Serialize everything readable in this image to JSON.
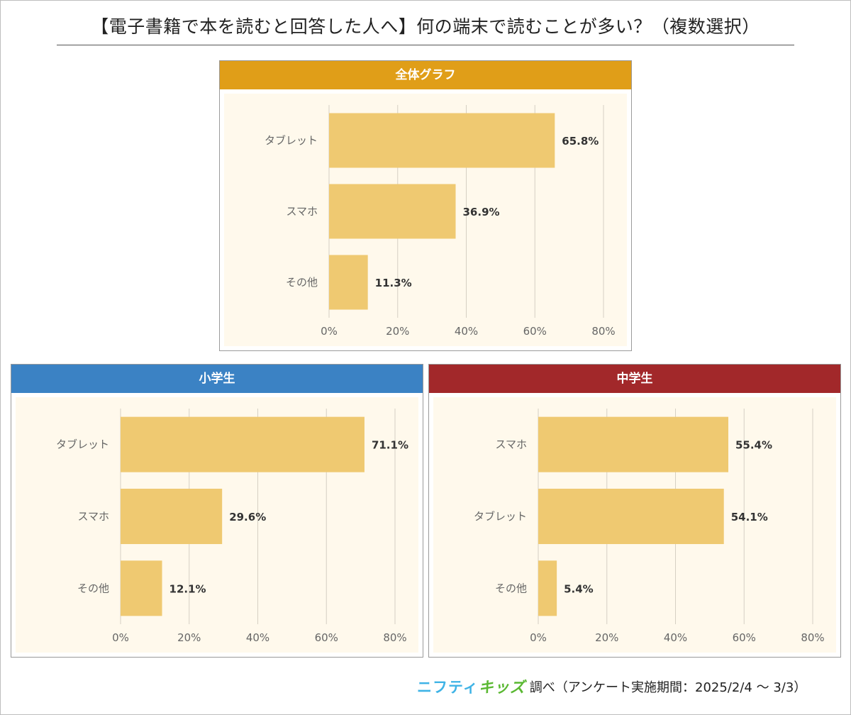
{
  "title": "【電子書籍で本を読むと回答した人へ】何の端末で読むことが多い？（複数選択）",
  "footer": {
    "logo_part1": "ニフティ",
    "logo_part2": "キッズ",
    "note": "調べ（アンケート実施期間：2025/2/4 ～ 3/3）"
  },
  "colors": {
    "bar": "#efc971",
    "header_all": "#e09e18",
    "header_elementary": "#3b82c4",
    "header_junior": "#a2282a",
    "plot_background": "#fff9ec"
  },
  "chart_data": [
    {
      "type": "bar",
      "orientation": "horizontal",
      "title": "全体グラフ",
      "categories": [
        "タブレット",
        "スマホ",
        "その他"
      ],
      "values": [
        65.8,
        36.9,
        11.3
      ],
      "value_labels": [
        "65.8%",
        "36.9%",
        "11.3%"
      ],
      "xlim": [
        0,
        80
      ],
      "xticks": [
        "0%",
        "20%",
        "40%",
        "60%",
        "80%"
      ],
      "grid": true,
      "legend": "none"
    },
    {
      "type": "bar",
      "orientation": "horizontal",
      "title": "小学生",
      "categories": [
        "タブレット",
        "スマホ",
        "その他"
      ],
      "values": [
        71.1,
        29.6,
        12.1
      ],
      "value_labels": [
        "71.1%",
        "29.6%",
        "12.1%"
      ],
      "xlim": [
        0,
        80
      ],
      "xticks": [
        "0%",
        "20%",
        "40%",
        "60%",
        "80%"
      ],
      "grid": true,
      "legend": "none"
    },
    {
      "type": "bar",
      "orientation": "horizontal",
      "title": "中学生",
      "categories": [
        "スマホ",
        "タブレット",
        "その他"
      ],
      "values": [
        55.4,
        54.1,
        5.4
      ],
      "value_labels": [
        "55.4%",
        "54.1%",
        "5.4%"
      ],
      "xlim": [
        0,
        80
      ],
      "xticks": [
        "0%",
        "20%",
        "40%",
        "60%",
        "80%"
      ],
      "grid": true,
      "legend": "none"
    }
  ]
}
